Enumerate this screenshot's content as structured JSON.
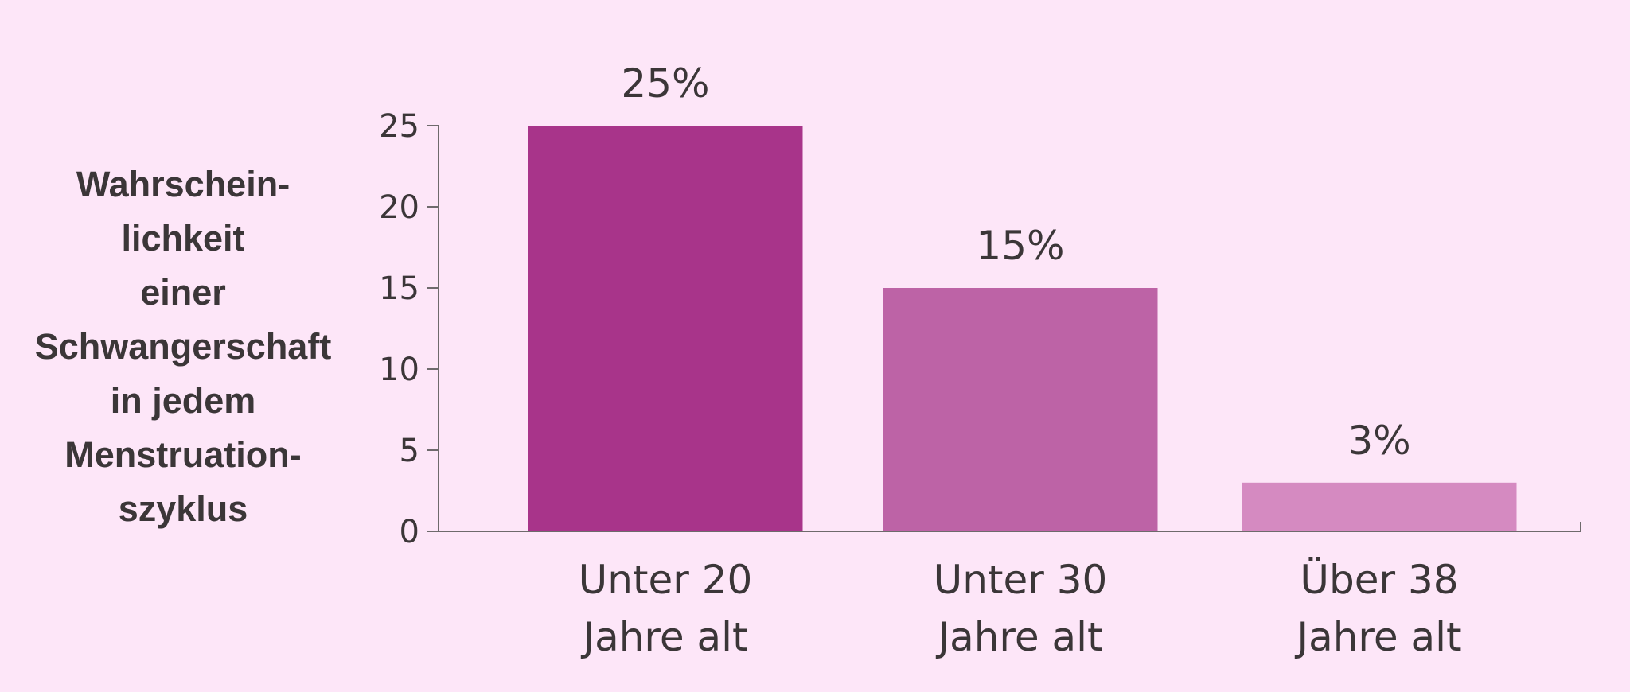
{
  "chart_data": {
    "type": "bar",
    "ylabel_lines": [
      "Wahrschein-",
      "lichkeit",
      "einer",
      "Schwangerschaft",
      "in jedem",
      "Menstruation-",
      "szyklus"
    ],
    "categories": [
      [
        "Unter 20",
        "Jahre alt"
      ],
      [
        "Unter 30",
        "Jahre alt"
      ],
      [
        "Über 38",
        "Jahre alt"
      ]
    ],
    "values": [
      25,
      15,
      3
    ],
    "data_labels": [
      "25%",
      "15%",
      "3%"
    ],
    "ylim": [
      0,
      25
    ],
    "yticks": [
      0,
      5,
      10,
      15,
      20,
      25
    ],
    "colors": [
      "#a8348a",
      "#bd63a6",
      "#d58ac1"
    ],
    "grid": false,
    "axis_color": "#6e6a6c"
  }
}
